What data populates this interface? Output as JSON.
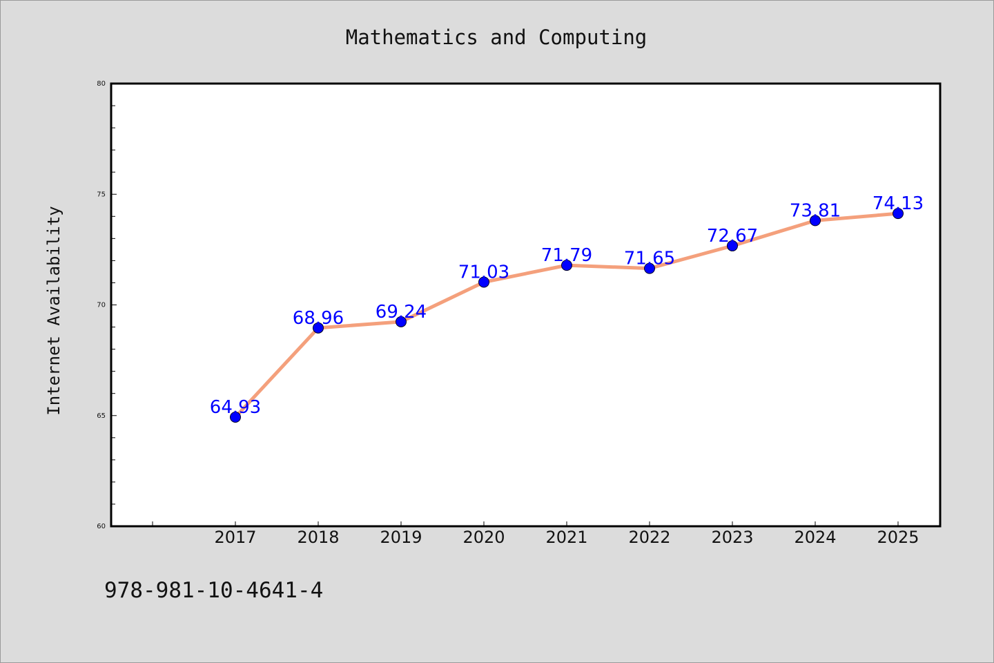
{
  "chart_data": {
    "type": "line",
    "title": "Mathematics and Computing",
    "xlabel": "",
    "ylabel": "Internet Availability",
    "categories": [
      "2017",
      "2018",
      "2019",
      "2020",
      "2021",
      "2022",
      "2023",
      "2024",
      "2025"
    ],
    "series": [
      {
        "values": [
          64.93,
          68.96,
          69.24,
          71.03,
          71.79,
          71.65,
          72.67,
          73.81,
          74.13
        ],
        "labels": [
          "64.93",
          "68.96",
          "69.24",
          "71.03",
          "71.79",
          "71.65",
          "72.67",
          "73.81",
          "74.13"
        ],
        "line_color": "#f4a07c",
        "marker_color": "#0000ff"
      }
    ],
    "ylim": [
      60,
      80
    ],
    "yticks": [
      "60",
      "65",
      "70",
      "75",
      "80"
    ],
    "grid": false,
    "legend": "none"
  },
  "footnote": "978-981-10-4641-4",
  "colors": {
    "background": "#dcdcdc",
    "plot_background": "#ffffff",
    "axis": "#000000",
    "data_label": "#0000ff"
  }
}
